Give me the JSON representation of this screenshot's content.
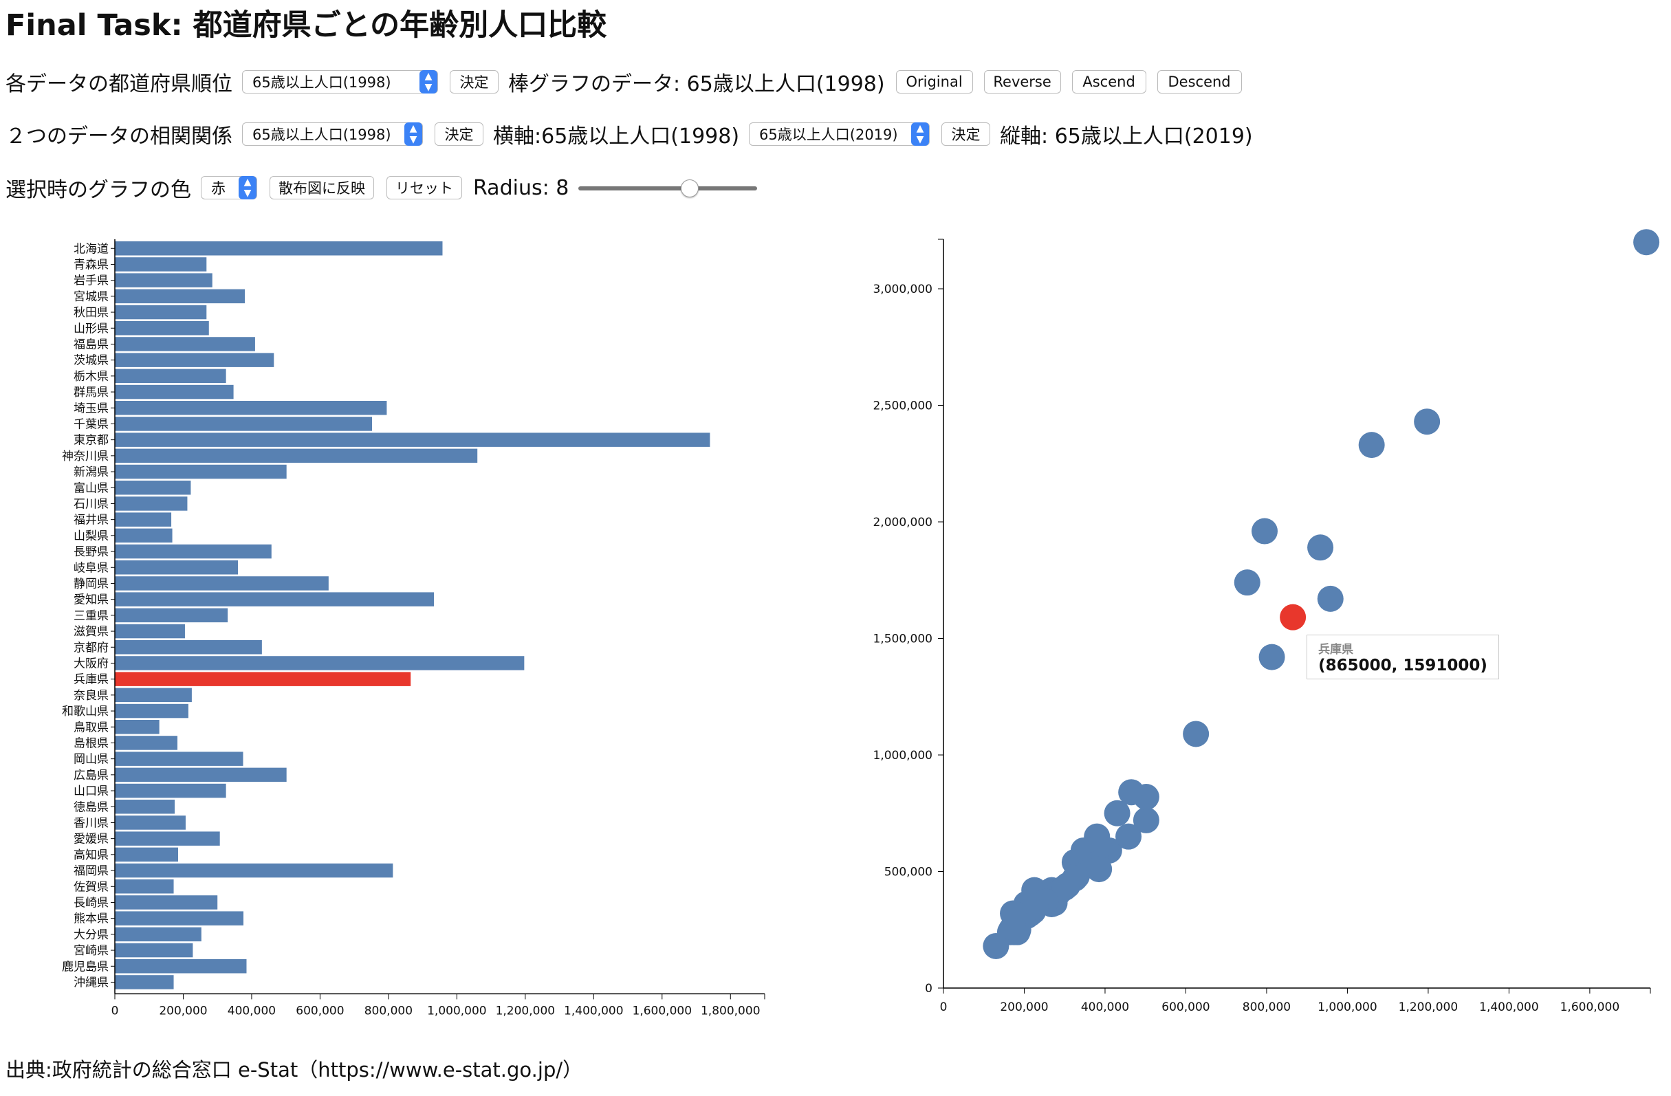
{
  "title": "Final Task: 都道府県ごとの年齢別人口比較",
  "row1": {
    "label": "各データの都道府県順位",
    "select_value": "65歳以上人口(1998)",
    "decide_label": "決定",
    "bar_data_label": "棒グラフのデータ: 65歳以上人口(1998)",
    "sort_buttons": [
      "Original",
      "Reverse",
      "Ascend",
      "Descend"
    ]
  },
  "row2": {
    "label": "２つのデータの相関関係",
    "select_x_value": "65歳以上人口(1998)",
    "decide_x_label": "決定",
    "x_axis_text": "横軸:65歳以上人口(1998)",
    "select_y_value": "65歳以上人口(2019)",
    "decide_y_label": "決定",
    "y_axis_text": "縦軸: 65歳以上人口(2019)"
  },
  "row3": {
    "label": "選択時のグラフの色",
    "color_value": "赤",
    "apply_label": "散布図に反映",
    "reset_label": "リセット",
    "radius_label": "Radius: 8",
    "slider_fraction": 0.63
  },
  "colors": {
    "bar": "#5881b2",
    "selected": "#e8372c"
  },
  "tooltip": {
    "name": "兵庫県",
    "value": "(865000, 1591000)"
  },
  "source": "出典:政府統計の総合窓口 e-Stat（https://www.e-stat.go.jp/）",
  "chart_data": [
    {
      "type": "bar",
      "orientation": "horizontal",
      "xlim": [
        0,
        1900000
      ],
      "x_ticks": [
        "0",
        "200,000",
        "400,000",
        "600,000",
        "800,000",
        "1,000,000",
        "1,200,000",
        "1,400,000",
        "1,600,000",
        "1,800,000"
      ],
      "categories": [
        "北海道",
        "青森県",
        "岩手県",
        "宮城県",
        "秋田県",
        "山形県",
        "福島県",
        "茨城県",
        "栃木県",
        "群馬県",
        "埼玉県",
        "千葉県",
        "東京都",
        "神奈川県",
        "新潟県",
        "富山県",
        "石川県",
        "福井県",
        "山梨県",
        "長野県",
        "岐阜県",
        "静岡県",
        "愛知県",
        "三重県",
        "滋賀県",
        "京都府",
        "大阪府",
        "兵庫県",
        "奈良県",
        "和歌山県",
        "鳥取県",
        "島根県",
        "岡山県",
        "広島県",
        "山口県",
        "徳島県",
        "香川県",
        "愛媛県",
        "高知県",
        "福岡県",
        "佐賀県",
        "長崎県",
        "熊本県",
        "大分県",
        "宮崎県",
        "鹿児島県",
        "沖縄県"
      ],
      "values": [
        958000,
        268000,
        285000,
        380000,
        268000,
        275000,
        410000,
        465000,
        325000,
        347000,
        795000,
        752000,
        1740000,
        1060000,
        502000,
        222000,
        212000,
        165000,
        168000,
        458000,
        360000,
        625000,
        933000,
        330000,
        205000,
        430000,
        1197000,
        865000,
        225000,
        215000,
        130000,
        183000,
        375000,
        502000,
        325000,
        175000,
        207000,
        307000,
        185000,
        813000,
        172000,
        300000,
        376000,
        253000,
        228000,
        385000,
        172000
      ],
      "highlighted": "兵庫県"
    },
    {
      "type": "scatter",
      "xlim": [
        0,
        1750000
      ],
      "ylim": [
        0,
        3200000
      ],
      "x_ticks": [
        "0",
        "200,000",
        "400,000",
        "600,000",
        "800,000",
        "1,000,000",
        "1,200,000",
        "1,400,000",
        "1,600,000"
      ],
      "y_ticks": [
        "0",
        "500,000",
        "1,000,000",
        "1,500,000",
        "2,000,000",
        "2,500,000",
        "3,000,000"
      ],
      "highlighted": "兵庫県",
      "points": [
        {
          "x": 958000,
          "y": 1670000
        },
        {
          "x": 268000,
          "y": 420000
        },
        {
          "x": 285000,
          "y": 410000
        },
        {
          "x": 380000,
          "y": 650000
        },
        {
          "x": 268000,
          "y": 360000
        },
        {
          "x": 275000,
          "y": 365000
        },
        {
          "x": 410000,
          "y": 590000
        },
        {
          "x": 465000,
          "y": 840000
        },
        {
          "x": 325000,
          "y": 540000
        },
        {
          "x": 347000,
          "y": 590000
        },
        {
          "x": 795000,
          "y": 1960000
        },
        {
          "x": 752000,
          "y": 1740000
        },
        {
          "x": 1740000,
          "y": 3200000
        },
        {
          "x": 1060000,
          "y": 2330000
        },
        {
          "x": 502000,
          "y": 720000
        },
        {
          "x": 222000,
          "y": 330000
        },
        {
          "x": 212000,
          "y": 340000
        },
        {
          "x": 165000,
          "y": 240000
        },
        {
          "x": 168000,
          "y": 250000
        },
        {
          "x": 458000,
          "y": 650000
        },
        {
          "x": 360000,
          "y": 590000
        },
        {
          "x": 625000,
          "y": 1090000
        },
        {
          "x": 933000,
          "y": 1890000
        },
        {
          "x": 330000,
          "y": 480000
        },
        {
          "x": 205000,
          "y": 360000
        },
        {
          "x": 430000,
          "y": 750000
        },
        {
          "x": 1197000,
          "y": 2430000
        },
        {
          "x": 865000,
          "y": 1591000
        },
        {
          "x": 225000,
          "y": 420000
        },
        {
          "x": 215000,
          "y": 320000
        },
        {
          "x": 130000,
          "y": 180000
        },
        {
          "x": 183000,
          "y": 240000
        },
        {
          "x": 375000,
          "y": 560000
        },
        {
          "x": 502000,
          "y": 820000
        },
        {
          "x": 325000,
          "y": 470000
        },
        {
          "x": 175000,
          "y": 240000
        },
        {
          "x": 207000,
          "y": 310000
        },
        {
          "x": 307000,
          "y": 440000
        },
        {
          "x": 185000,
          "y": 250000
        },
        {
          "x": 813000,
          "y": 1420000
        },
        {
          "x": 172000,
          "y": 260000
        },
        {
          "x": 300000,
          "y": 430000
        },
        {
          "x": 376000,
          "y": 530000
        },
        {
          "x": 253000,
          "y": 370000
        },
        {
          "x": 228000,
          "y": 350000
        },
        {
          "x": 385000,
          "y": 510000
        },
        {
          "x": 172000,
          "y": 320000
        }
      ]
    }
  ]
}
